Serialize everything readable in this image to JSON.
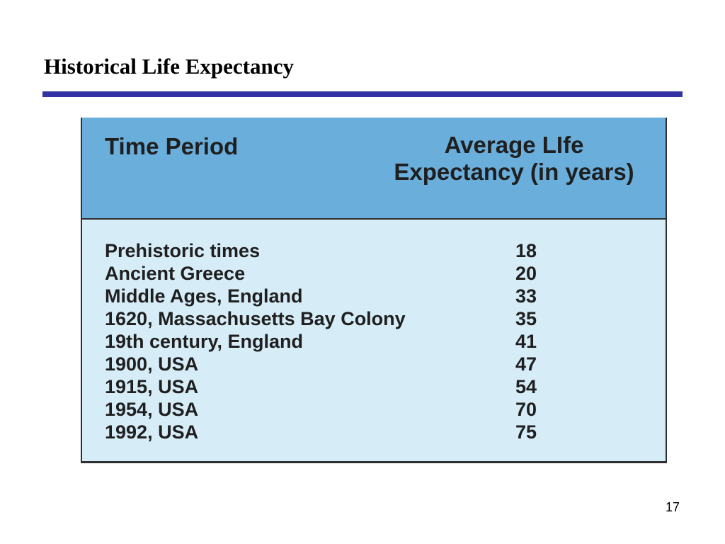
{
  "slide": {
    "title": "Historical Life Expectancy",
    "page_number": "17",
    "accent_color": "#3333a6"
  },
  "table": {
    "header_bg": "#6aaedb",
    "body_bg": "#d6ecf7",
    "col1_header": "Time Period",
    "col2_header_line1": "Average LIfe",
    "col2_header_line2": "Expectancy (in years)",
    "rows": [
      {
        "period": "Prehistoric times",
        "years": "18"
      },
      {
        "period": "Ancient Greece",
        "years": "20"
      },
      {
        "period": "Middle Ages, England",
        "years": "33"
      },
      {
        "period": "1620, Massachusetts Bay Colony",
        "years": "35"
      },
      {
        "period": "19th century, England",
        "years": "41"
      },
      {
        "period": "1900, USA",
        "years": "47"
      },
      {
        "period": "1915, USA",
        "years": "54"
      },
      {
        "period": "1954, USA",
        "years": "70"
      },
      {
        "period": "1992, USA",
        "years": "75"
      }
    ]
  }
}
